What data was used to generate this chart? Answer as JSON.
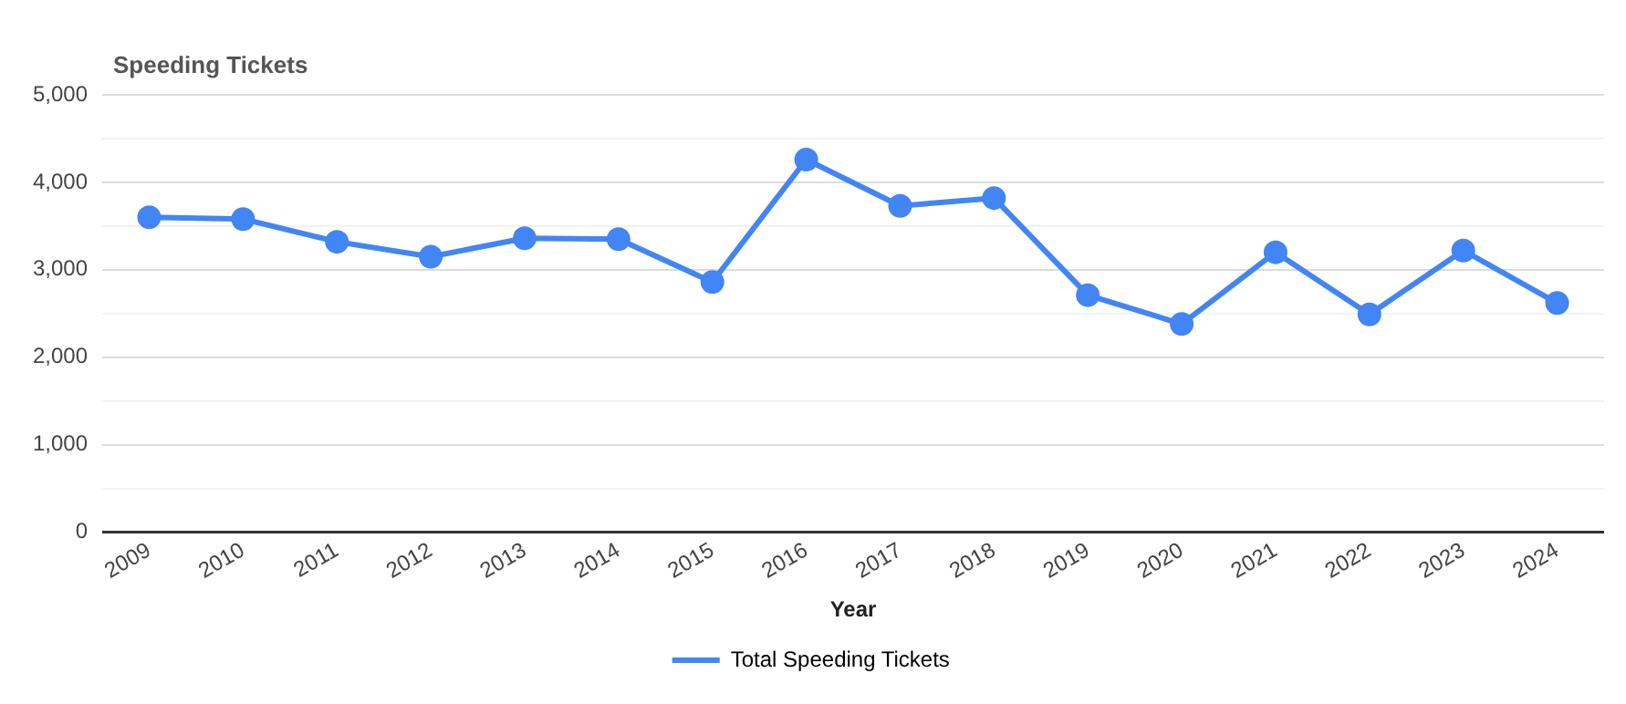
{
  "chart_data": {
    "type": "line",
    "title": "Speeding Tickets",
    "xlabel": "Year",
    "categories": [
      "2009",
      "2010",
      "2011",
      "2012",
      "2013",
      "2014",
      "2015",
      "2016",
      "2017",
      "2018",
      "2019",
      "2020",
      "2021",
      "2022",
      "2023",
      "2024"
    ],
    "series": [
      {
        "name": "Total Speeding Tickets",
        "color": "#4285f4",
        "values": [
          3600,
          3580,
          3320,
          3150,
          3360,
          3350,
          2860,
          4260,
          3730,
          3820,
          2710,
          2380,
          3200,
          2490,
          3220,
          2620
        ]
      }
    ],
    "ylim": [
      0,
      5000
    ],
    "yticks": [
      {
        "value": 0,
        "label": "0"
      },
      {
        "value": 500,
        "label": null
      },
      {
        "value": 1000,
        "label": "1,000"
      },
      {
        "value": 1500,
        "label": null
      },
      {
        "value": 2000,
        "label": "2,000"
      },
      {
        "value": 2500,
        "label": null
      },
      {
        "value": 3000,
        "label": "3,000"
      },
      {
        "value": 3500,
        "label": null
      },
      {
        "value": 4000,
        "label": "4,000"
      },
      {
        "value": 4500,
        "label": null
      },
      {
        "value": 5000,
        "label": "5,000"
      }
    ],
    "grid": "y",
    "legend": "bottom",
    "marker": "circle",
    "line_style": "solid"
  }
}
